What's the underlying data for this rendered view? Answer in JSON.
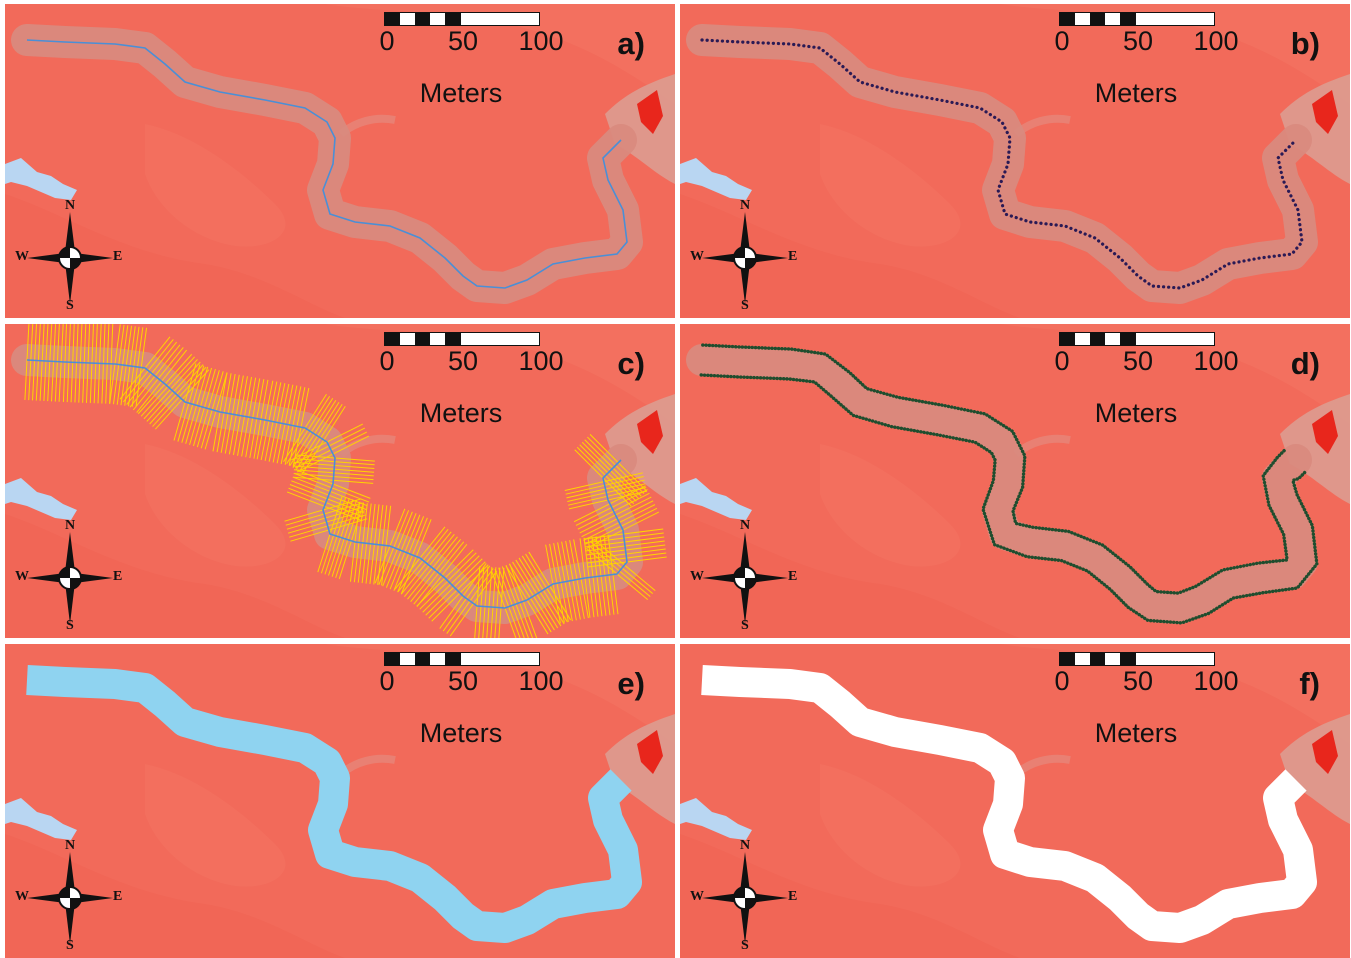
{
  "panels": [
    {
      "label": "a)"
    },
    {
      "label": "b)"
    },
    {
      "label": "c)"
    },
    {
      "label": "d)"
    },
    {
      "label": "e)"
    },
    {
      "label": "f)"
    }
  ],
  "scale_bar": {
    "ticks": [
      "0",
      "50",
      "100"
    ],
    "unit": "Meters"
  },
  "compass": {
    "n": "N",
    "s": "S",
    "e": "E",
    "w": "W"
  },
  "colors": {
    "background": "#f26a5a",
    "river_buffer": "#d98a7e",
    "centerline": "#4a8fd6",
    "points_b": "#2a1a55",
    "transects": "#ffd400",
    "points_d": "#1f4d2e",
    "polygon_e": "#8fd3f0",
    "polygon_f": "#ffffff",
    "lake": "#b9d6f2"
  }
}
